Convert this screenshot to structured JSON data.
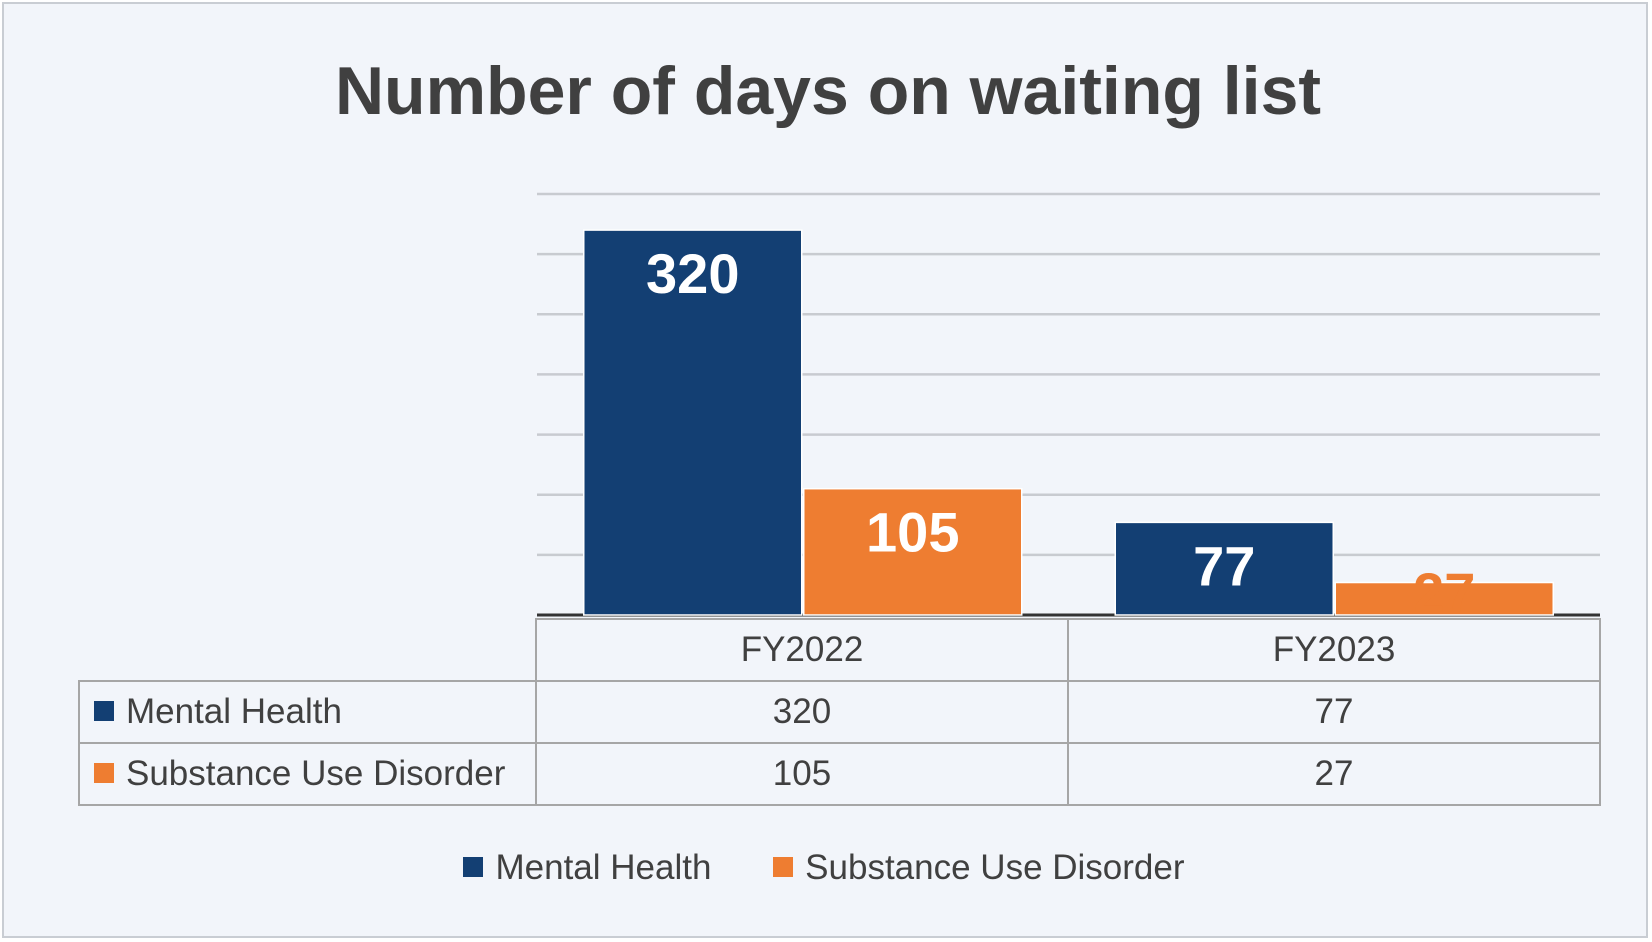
{
  "chart_data": {
    "type": "bar",
    "title": "Number of days on waiting list",
    "categories": [
      "FY2022",
      "FY2023"
    ],
    "series": [
      {
        "name": "Mental Health",
        "values": [
          320,
          77
        ],
        "color": "#133f73"
      },
      {
        "name": "Substance Use Disorder",
        "values": [
          105,
          27
        ],
        "color": "#ee7d31"
      }
    ],
    "ylim": [
      0,
      350
    ],
    "grid": true,
    "data_table": true,
    "legend": "bottom"
  }
}
